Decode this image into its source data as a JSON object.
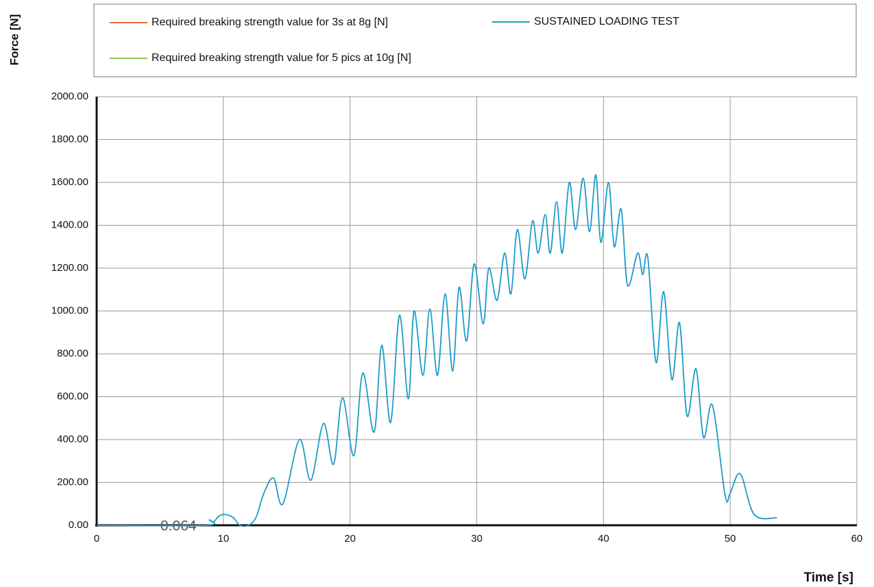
{
  "chart_data": {
    "type": "line",
    "y_label": "Force [N]",
    "x_label": "Time [s]",
    "annotation": "0.064",
    "xlim": [
      0,
      60
    ],
    "xticks": [
      0,
      10,
      20,
      30,
      40,
      50,
      60
    ],
    "ylim": [
      0,
      2000
    ],
    "yticks": [
      {
        "value": 0,
        "label": "0.00"
      },
      {
        "value": 200,
        "label": "200.00"
      },
      {
        "value": 400,
        "label": "400.00"
      },
      {
        "value": 600,
        "label": "600.00"
      },
      {
        "value": 800,
        "label": "800.00"
      },
      {
        "value": 1000,
        "label": "1000.00"
      },
      {
        "value": 1200,
        "label": "1200.00"
      },
      {
        "value": 1400,
        "label": "1400.00"
      },
      {
        "value": 1600,
        "label": "1600.00"
      },
      {
        "value": 1800,
        "label": "1800.00"
      },
      {
        "value": 2000,
        "label": "2000.00"
      }
    ],
    "grid": true,
    "x": [
      0,
      8.6,
      8.9,
      9.2,
      9.7,
      10.2,
      10.8,
      11.3,
      12.0,
      12.6,
      13.2,
      13.96,
      14.7,
      16.0,
      16.9,
      17.9,
      18.7,
      19.4,
      20.3,
      21.0,
      21.9,
      22.5,
      23.2,
      23.9,
      24.6,
      25.05,
      25.75,
      26.3,
      26.9,
      27.5,
      28.1,
      28.6,
      29.2,
      29.8,
      30.5,
      30.95,
      31.6,
      32.2,
      32.7,
      33.2,
      33.8,
      34.4,
      34.85,
      35.4,
      35.8,
      36.3,
      36.75,
      37.3,
      37.8,
      38.4,
      38.9,
      39.4,
      39.8,
      40.4,
      40.85,
      41.4,
      41.9,
      42.7,
      43.1,
      43.5,
      44.15,
      44.75,
      45.4,
      46.0,
      46.6,
      47.3,
      47.9,
      48.6,
      49.6,
      50.0,
      50.8,
      51.9,
      53.7
    ],
    "series": [
      {
        "name": "Required breaking strength value for 3s at 8g [N]",
        "color": "#e0703a"
      },
      {
        "name": "SUSTAINED LOADING TEST",
        "color": "#1c9cc8",
        "values": [
          0,
          0,
          25,
          15,
          45,
          50,
          35,
          0,
          0,
          40,
          150,
          220,
          100,
          400,
          210,
          475,
          285,
          595,
          325,
          710,
          435,
          840,
          480,
          980,
          590,
          1000,
          700,
          1010,
          700,
          1080,
          720,
          1110,
          860,
          1220,
          940,
          1200,
          1050,
          1270,
          1080,
          1380,
          1150,
          1420,
          1270,
          1450,
          1270,
          1510,
          1270,
          1600,
          1380,
          1620,
          1370,
          1635,
          1320,
          1600,
          1300,
          1475,
          1120,
          1270,
          1170,
          1250,
          760,
          1090,
          680,
          945,
          510,
          730,
          410,
          560,
          140,
          150,
          240,
          50,
          35
        ]
      },
      {
        "name": "Required breaking strength value for 5 pics at 10g [N]",
        "color": "#8cc84b"
      }
    ]
  }
}
